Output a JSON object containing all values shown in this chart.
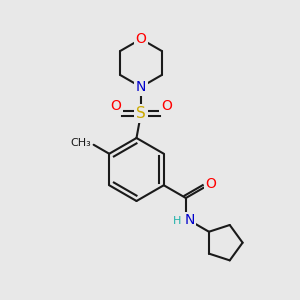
{
  "bg_color": "#e8e8e8",
  "bond_color": "#1a1a1a",
  "bond_width": 1.5,
  "atom_colors": {
    "O": "#ff0000",
    "N": "#0000cc",
    "S": "#ccaa00",
    "C": "#1a1a1a",
    "H": "#20b2aa"
  },
  "font_size": 9,
  "fig_size": [
    3.0,
    3.0
  ],
  "dpi": 100,
  "xlim": [
    0,
    10
  ],
  "ylim": [
    0,
    10
  ]
}
